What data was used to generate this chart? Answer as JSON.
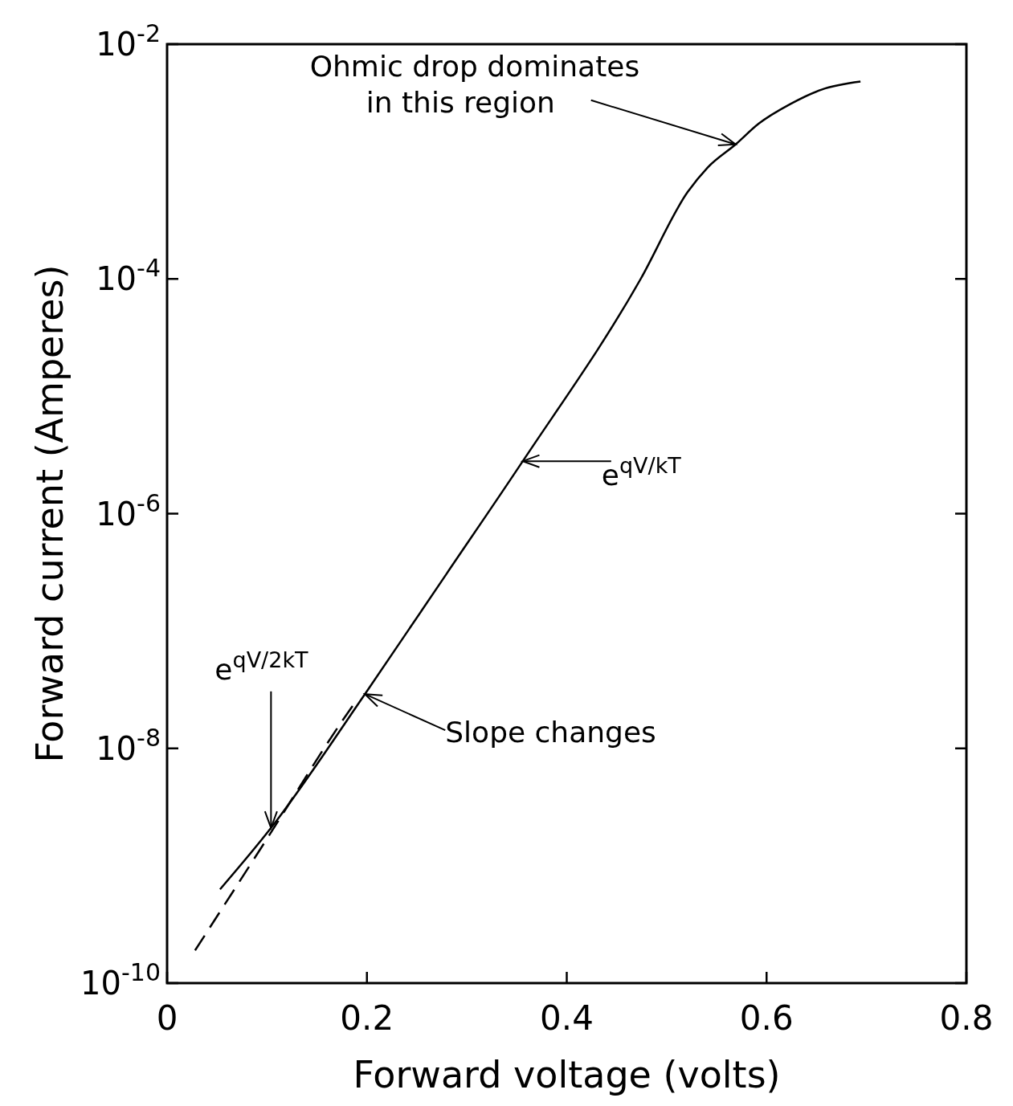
{
  "chart_data": {
    "type": "line",
    "xlabel": "Forward voltage (volts)",
    "ylabel": "Forward current (Amperes)",
    "log": "y",
    "xlim": [
      0,
      0.8
    ],
    "xticks": [
      0,
      0.2,
      0.4,
      0.6,
      0.8
    ],
    "ylim": [
      1e-10,
      0.01
    ],
    "yticks": [
      {
        "value": 1e-10,
        "label": "10$^{-10}$"
      },
      {
        "value": 1e-08,
        "label": "10$^{-8}$"
      },
      {
        "value": 1e-06,
        "label": "10$^{-6}$"
      },
      {
        "value": 0.0001,
        "label": "10$^{-4}$"
      },
      {
        "value": 0.01,
        "label": "10$^{-2}$"
      }
    ],
    "series": [
      {
        "color": "#000000",
        "line_style": "solid",
        "x": [
          0.053,
          0.104,
          0.198,
          0.28,
          0.356,
          0.474,
          0.521,
          0.541,
          0.569,
          0.592,
          0.624,
          0.655,
          0.694
        ],
        "values": [
          6.3e-10,
          2.1e-09,
          2.9e-08,
          3.1e-07,
          2.8e-06,
          0.0001,
          0.00055,
          0.00089,
          0.0014,
          0.0021,
          0.0031,
          0.0041,
          0.0048
        ]
      },
      {
        "color": "#000000",
        "line_style": "dashed",
        "x": [
          0.028,
          0.1,
          0.175,
          0.19
        ],
        "values": [
          1.9e-10,
          1.7e-09,
          1.7e-08,
          2.6e-08
        ]
      }
    ],
    "annotations": [
      {
        "text": "Ohmic drop dominates in this region",
        "x": 0.569,
        "y": 0.0014
      },
      {
        "text": "e$^{qV/kT}$",
        "x": 0.356,
        "y": 2.8e-06
      },
      {
        "text": "e$^{qV/2kT}$",
        "x": 0.104,
        "y": 2.1e-09
      },
      {
        "text": "Slope changes",
        "x": 0.198,
        "y": 2.9e-08
      }
    ]
  }
}
